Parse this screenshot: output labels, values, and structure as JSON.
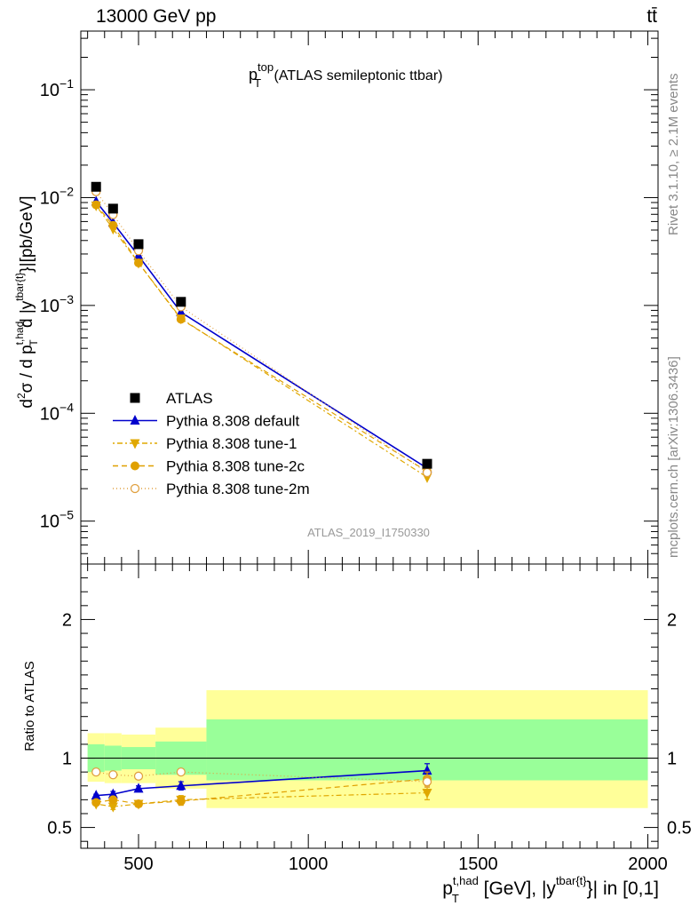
{
  "header": {
    "energy_label": "13000 GeV pp",
    "process_label": "tt̄"
  },
  "side_labels": {
    "rivet": "Rivet 3.1.10, ≥ 2.1M events",
    "mcplots": "mcplots.cern.ch [arXiv:1306.3436]"
  },
  "main": {
    "title_main": "p",
    "title_sup": "top",
    "title_sub": "T",
    "title_rest": " (ATLAS semileptonic ttbar)",
    "ylabel": "d²σ / d p_T^{t,had} d |y^{tbar{t}}|[pb/GeV]",
    "analysis_tag": "ATLAS_2019_I1750330"
  },
  "ratio": {
    "ylabel": "Ratio to ATLAS"
  },
  "xaxis": {
    "label": "p_T^{t,had} [GeV], |y^{tbar{t}}| in [0,1]"
  },
  "legend": [
    {
      "name": "ATLAS"
    },
    {
      "name": "Pythia 8.308 default"
    },
    {
      "name": "Pythia 8.308 tune-1"
    },
    {
      "name": "Pythia 8.308 tune-2c"
    },
    {
      "name": "Pythia 8.308 tune-2m"
    }
  ],
  "chart_data": {
    "type": "scatter",
    "x": [
      375,
      425,
      500,
      625,
      1350
    ],
    "x_edges": [
      350,
      400,
      450,
      550,
      700,
      2000
    ],
    "xlim": [
      330,
      2030
    ],
    "xticks": [
      500,
      1000,
      1500,
      2000
    ],
    "ylim": [
      4e-06,
      0.35
    ],
    "ylog": true,
    "yticks": [
      "10^-5",
      "10^-4",
      "10^-3",
      "10^-2",
      "10^-1"
    ],
    "ratio_ylim": [
      0.35,
      2.4
    ],
    "ratio_yticks": [
      0.5,
      1,
      2
    ],
    "data": {
      "name": "ATLAS",
      "values": [
        0.0126,
        0.0079,
        0.0037,
        0.00108,
        3.4e-05
      ],
      "band_inner": [
        [
          0.9,
          1.1
        ],
        [
          0.91,
          1.09
        ],
        [
          0.92,
          1.08
        ],
        [
          0.88,
          1.12
        ],
        [
          0.84,
          1.28
        ]
      ],
      "band_outer": [
        [
          0.83,
          1.18
        ],
        [
          0.82,
          1.18
        ],
        [
          0.82,
          1.17
        ],
        [
          0.78,
          1.22
        ],
        [
          0.64,
          1.49
        ]
      ]
    },
    "series": [
      {
        "name": "Pythia 8.308 default",
        "color": "#0000cc",
        "marker": "triangle-up",
        "dash": "",
        "ratio": [
          0.73,
          0.74,
          0.78,
          0.8,
          0.91
        ],
        "ratio_err": [
          0.01,
          0.02,
          0.02,
          0.03,
          0.05
        ]
      },
      {
        "name": "Pythia 8.308 tune-1",
        "color": "#e0a800",
        "marker": "triangle-down",
        "dash": "2,3,6,3",
        "ratio": [
          0.67,
          0.65,
          0.67,
          0.7,
          0.75
        ],
        "ratio_err": [
          0.01,
          0.02,
          0.02,
          0.03,
          0.05
        ]
      },
      {
        "name": "Pythia 8.308 tune-2c",
        "color": "#e0a000",
        "marker": "circle",
        "dash": "6,4",
        "ratio": [
          0.68,
          0.7,
          0.67,
          0.69,
          0.85
        ],
        "ratio_err": [
          0.01,
          0.02,
          0.02,
          0.03,
          0.05
        ]
      },
      {
        "name": "Pythia 8.308 tune-2m",
        "color": "#e0a040",
        "marker": "circle-open",
        "dash": "1,3",
        "ratio": [
          0.9,
          0.88,
          0.87,
          0.9,
          0.83
        ],
        "ratio_err": [
          0.01,
          0.01,
          0.02,
          0.02,
          0.04
        ]
      }
    ],
    "colors": {
      "band_inner": "#99ff99",
      "band_outer": "#ffff99",
      "data": "#000000"
    }
  }
}
